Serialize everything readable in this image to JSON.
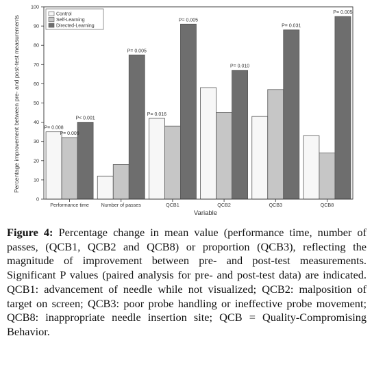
{
  "chart_data": {
    "type": "bar",
    "title": "",
    "xlabel": "Variable",
    "ylabel": "Percentage improvement between pre- and post-test measurements",
    "ylim": [
      0,
      100
    ],
    "yticks": [
      0,
      10,
      20,
      30,
      40,
      50,
      60,
      70,
      80,
      90,
      100
    ],
    "categories": [
      "Performance time",
      "Number of passes",
      "QCB1",
      "QCB2",
      "QCB3",
      "QCB8"
    ],
    "series": [
      {
        "name": "Control",
        "color": "#f7f7f7",
        "values": [
          35,
          12,
          42,
          58,
          43,
          33
        ]
      },
      {
        "name": "Self-Learning",
        "color": "#c6c6c6",
        "values": [
          32,
          18,
          38,
          45,
          57,
          24
        ]
      },
      {
        "name": "Directed-Learning",
        "color": "#6e6e6e",
        "values": [
          40,
          75,
          91,
          67,
          88,
          95
        ]
      }
    ],
    "annotations": [
      {
        "category": 0,
        "series": 0,
        "text": "P= 0.008"
      },
      {
        "category": 0,
        "series": 1,
        "text": "P= 0.009"
      },
      {
        "category": 0,
        "series": 2,
        "text": "P< 0.001"
      },
      {
        "category": 1,
        "series": 2,
        "text": "P= 0.005"
      },
      {
        "category": 2,
        "series": 0,
        "text": "P= 0.016"
      },
      {
        "category": 2,
        "series": 2,
        "text": "P= 0.005"
      },
      {
        "category": 3,
        "series": 2,
        "text": "P= 0.010"
      },
      {
        "category": 4,
        "series": 2,
        "text": "P= 0.031"
      },
      {
        "category": 5,
        "series": 2,
        "text": "P= 0.005"
      }
    ],
    "legend_position": "top-left",
    "grid": false
  },
  "caption": {
    "label": "Figure 4:",
    "text": " Percentage change in mean value (performance time, number of passes, (QCB1, QCB2 and QCB8) or proportion (QCB3), reflecting the magnitude of improvement between pre- and post-test measurements. Significant P values (paired analysis for pre- and post-test data) are indicated. QCB1: advancement of needle while not visualized; QCB2: malposition of target on screen; QCB3: poor probe handling or ineffective probe movement; QCB8: inappropriate needle insertion site; QCB = Quality-Compromising Behavior."
  }
}
